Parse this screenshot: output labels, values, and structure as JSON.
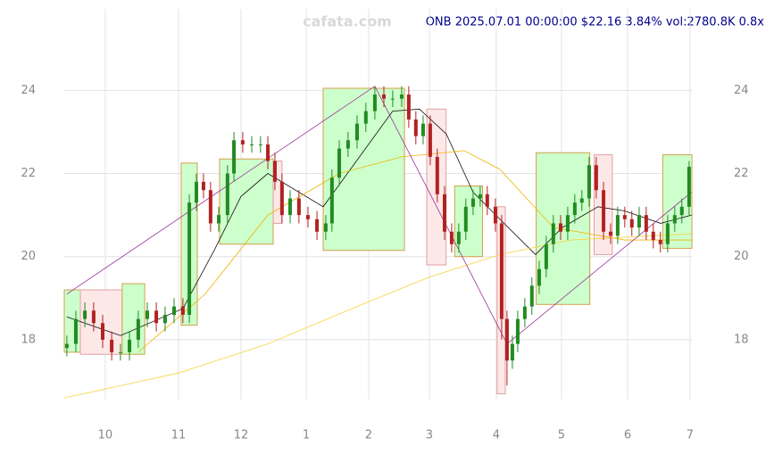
{
  "chart_data": {
    "type": "candlestick",
    "title": "ONB 2025.07.01 00:00:00 $22.16 3.84% vol:2780.8K 0.8x",
    "watermark": "cafata.com",
    "up_color": "#228b22",
    "down_color": "#b22222",
    "x": [
      12.2,
      16.4,
      20.6,
      24.7,
      28.9,
      33.1,
      37.2,
      41.4,
      45.5,
      49.7,
      53.9,
      58.0,
      62.2,
      66.3,
      69.3,
      72.6,
      75.9,
      79.2,
      83.0,
      87.1,
      90.1,
      94.2,
      98.4,
      102.5,
      105.9,
      109.2,
      112.5,
      116.3,
      120.4,
      124.6,
      128.8,
      132.9,
      135.8,
      139.2,
      143.3,
      147.5,
      151.6,
      155.8,
      160.0,
      164.1,
      168.3,
      171.6,
      174.9,
      178.3,
      181.6,
      184.9,
      188.3,
      191.6,
      194.9,
      198.2,
      201.6,
      204.9,
      208.2,
      212.0,
      214.9,
      217.4,
      219.9,
      222.4,
      225.7,
      229.0,
      232.4,
      235.7,
      239.0,
      242.4,
      245.7,
      249.0,
      252.3,
      255.7,
      259.0,
      262.4,
      265.7,
      269.0,
      272.3,
      275.6,
      279.0,
      282.3,
      285.6,
      288.9,
      292.3,
      295.6,
      298.9,
      302.3
    ],
    "open": [
      17.8,
      17.9,
      18.5,
      18.7,
      18.4,
      18.0,
      17.7,
      17.7,
      18.0,
      18.5,
      18.7,
      18.4,
      18.6,
      18.8,
      18.6,
      21.3,
      21.8,
      21.6,
      20.8,
      21.0,
      22.0,
      22.8,
      22.7,
      22.7,
      22.7,
      22.3,
      21.8,
      21.0,
      21.4,
      21.0,
      20.9,
      20.6,
      20.8,
      21.9,
      22.6,
      22.8,
      23.2,
      23.5,
      23.9,
      23.8,
      23.8,
      23.9,
      23.3,
      22.9,
      23.2,
      22.4,
      21.5,
      20.6,
      20.3,
      20.6,
      21.2,
      21.4,
      21.5,
      21.2,
      20.8,
      18.5,
      17.5,
      17.9,
      18.5,
      18.8,
      19.3,
      19.7,
      20.3,
      20.8,
      20.6,
      21.0,
      21.3,
      21.4,
      22.2,
      21.6,
      20.6,
      20.5,
      21.0,
      20.9,
      20.7,
      21.0,
      20.6,
      20.4,
      20.3,
      20.8,
      21.0,
      21.2
    ],
    "high": [
      18.1,
      18.7,
      18.9,
      18.9,
      18.6,
      18.2,
      17.9,
      18.2,
      18.7,
      18.9,
      18.9,
      18.8,
      19.0,
      19.0,
      21.5,
      22.0,
      22.0,
      21.8,
      21.2,
      22.2,
      23.0,
      23.0,
      22.9,
      22.9,
      22.9,
      22.5,
      22.0,
      21.6,
      21.6,
      21.2,
      21.1,
      21.0,
      22.1,
      22.8,
      23.0,
      23.4,
      23.7,
      24.1,
      24.1,
      24.0,
      24.1,
      24.1,
      23.5,
      23.4,
      23.4,
      22.6,
      21.7,
      20.8,
      20.8,
      21.4,
      21.6,
      21.7,
      21.7,
      21.4,
      21.0,
      18.7,
      18.1,
      18.7,
      19.0,
      19.5,
      19.9,
      20.5,
      21.0,
      21.0,
      21.2,
      21.5,
      21.6,
      22.4,
      22.4,
      21.8,
      20.8,
      21.2,
      21.2,
      21.1,
      21.2,
      21.2,
      20.8,
      20.6,
      21.0,
      21.2,
      21.4,
      22.3
    ],
    "low": [
      17.6,
      17.7,
      18.3,
      18.2,
      17.8,
      17.5,
      17.5,
      17.5,
      17.8,
      18.3,
      18.2,
      18.2,
      18.4,
      18.4,
      18.4,
      21.1,
      21.4,
      20.6,
      20.6,
      20.8,
      21.8,
      22.5,
      22.5,
      22.5,
      22.1,
      21.6,
      20.8,
      20.8,
      20.8,
      20.7,
      20.4,
      20.4,
      20.6,
      21.7,
      22.4,
      22.6,
      23.0,
      23.3,
      23.6,
      23.6,
      23.6,
      23.1,
      22.7,
      22.7,
      22.2,
      21.3,
      20.4,
      20.1,
      20.1,
      20.4,
      21.0,
      21.2,
      21.0,
      20.6,
      18.0,
      16.9,
      17.3,
      17.7,
      18.3,
      18.6,
      19.1,
      19.5,
      20.1,
      20.4,
      20.4,
      20.8,
      21.1,
      21.2,
      21.4,
      20.4,
      20.3,
      20.3,
      20.7,
      20.5,
      20.5,
      20.4,
      20.2,
      20.1,
      20.1,
      20.6,
      20.8,
      21.0
    ],
    "close": [
      17.9,
      18.5,
      18.7,
      18.4,
      18.0,
      17.7,
      17.7,
      18.0,
      18.5,
      18.7,
      18.4,
      18.6,
      18.8,
      18.6,
      21.3,
      21.8,
      21.6,
      20.8,
      21.0,
      22.0,
      22.8,
      22.7,
      22.7,
      22.7,
      22.3,
      21.8,
      21.0,
      21.4,
      21.0,
      20.9,
      20.6,
      20.8,
      21.9,
      22.6,
      22.8,
      23.2,
      23.5,
      23.9,
      23.8,
      23.8,
      23.9,
      23.3,
      22.9,
      23.2,
      22.4,
      21.5,
      20.6,
      20.3,
      20.6,
      21.2,
      21.4,
      21.5,
      21.2,
      20.8,
      18.5,
      17.5,
      17.9,
      18.5,
      18.8,
      19.3,
      19.7,
      20.3,
      20.8,
      20.6,
      21.0,
      21.3,
      21.4,
      22.2,
      21.6,
      20.6,
      20.5,
      21.0,
      20.9,
      20.7,
      21.0,
      20.6,
      20.4,
      20.3,
      20.8,
      21.0,
      21.2,
      22.16
    ],
    "xlim": [
      11,
      304
    ],
    "xticks": [
      {
        "value": 30.1,
        "label": "10"
      },
      {
        "value": 64.3,
        "label": "11"
      },
      {
        "value": 93.4,
        "label": "12"
      },
      {
        "value": 123.8,
        "label": "1"
      },
      {
        "value": 152.9,
        "label": "2"
      },
      {
        "value": 181.2,
        "label": "3"
      },
      {
        "value": 212.4,
        "label": "4"
      },
      {
        "value": 242.8,
        "label": "5"
      },
      {
        "value": 273.6,
        "label": "6"
      },
      {
        "value": 302.7,
        "label": "7"
      }
    ],
    "ylim": [
      16.56,
      25.96
    ],
    "yticks": [
      18,
      20,
      22,
      24
    ],
    "grid": true,
    "boxes": [
      {
        "x0": 11,
        "x1": 18.5,
        "low": 17.7,
        "high": 19.2,
        "fill": "#ccffcc",
        "stroke": "#d4a04a"
      },
      {
        "x0": 18.5,
        "x1": 38,
        "low": 17.65,
        "high": 19.2,
        "fill": "#fde8e8",
        "stroke": "#e0a0a0"
      },
      {
        "x0": 38,
        "x1": 48.5,
        "low": 17.65,
        "high": 19.35,
        "fill": "#ccffcc",
        "stroke": "#d4a04a"
      },
      {
        "x0": 65.5,
        "x1": 73,
        "low": 18.35,
        "high": 22.25,
        "fill": "#ccffcc",
        "stroke": "#d4a04a"
      },
      {
        "x0": 83.4,
        "x1": 108.4,
        "low": 20.3,
        "high": 22.35,
        "fill": "#ccffcc",
        "stroke": "#d4a04a"
      },
      {
        "x0": 108.4,
        "x1": 112.5,
        "low": 20.8,
        "high": 22.3,
        "fill": "#fde8e8",
        "stroke": "#e0a0a0"
      },
      {
        "x0": 131.7,
        "x1": 169.6,
        "low": 20.15,
        "high": 24.05,
        "fill": "#ccffcc",
        "stroke": "#d4a04a"
      },
      {
        "x0": 180,
        "x1": 189,
        "low": 19.8,
        "high": 23.55,
        "fill": "#fde8e8",
        "stroke": "#e0a0a0"
      },
      {
        "x0": 193,
        "x1": 206,
        "low": 20.0,
        "high": 21.7,
        "fill": "#ccffcc",
        "stroke": "#d4a04a"
      },
      {
        "x0": 212.8,
        "x1": 216.6,
        "low": 16.7,
        "high": 21.2,
        "fill": "#fde8e8",
        "stroke": "#e0a0a0"
      },
      {
        "x0": 231,
        "x1": 256,
        "low": 18.85,
        "high": 22.5,
        "fill": "#ccffcc",
        "stroke": "#d4a04a"
      },
      {
        "x0": 258,
        "x1": 266.5,
        "low": 20.05,
        "high": 22.45,
        "fill": "#fde8e8",
        "stroke": "#e0a0a0"
      },
      {
        "x0": 290,
        "x1": 303.6,
        "low": 20.2,
        "high": 22.45,
        "fill": "#ccffcc",
        "stroke": "#d4a04a"
      }
    ],
    "lines": [
      {
        "color": "#111111",
        "x": [
          12.2,
          37.2,
          66.3,
          80.9,
          93.4,
          105.9,
          131.7,
          164.1,
          176.6,
          189.1,
          201.6,
          214.1,
          230.7,
          243.2,
          259.8,
          272.3,
          289.0,
          303.5
        ],
        "values": [
          18.55,
          18.1,
          18.75,
          20.15,
          21.45,
          22.0,
          21.2,
          23.5,
          23.55,
          22.95,
          21.55,
          20.9,
          20.05,
          20.7,
          21.2,
          21.1,
          20.8,
          21.0
        ]
      },
      {
        "color": "#f0b400",
        "x": [
          45.5,
          76.7,
          105.9,
          139.2,
          168.3,
          197.4,
          214.1,
          239.0,
          272.3,
          303.5
        ],
        "values": [
          17.7,
          19.1,
          21.0,
          22.0,
          22.4,
          22.55,
          22.1,
          20.7,
          20.4,
          20.4
        ]
      },
      {
        "color": "#f5d540",
        "x": [
          11.0,
          64.3,
          105.9,
          147.5,
          180.8,
          214.1,
          247.3,
          303.5
        ],
        "values": [
          16.6,
          17.2,
          17.9,
          18.8,
          19.5,
          20.05,
          20.4,
          20.55
        ]
      },
      {
        "color": "#993399",
        "x": [
          12.2,
          155.8,
          217.4,
          303.5
        ],
        "values": [
          19.1,
          24.1,
          17.9,
          21.55
        ]
      }
    ]
  }
}
